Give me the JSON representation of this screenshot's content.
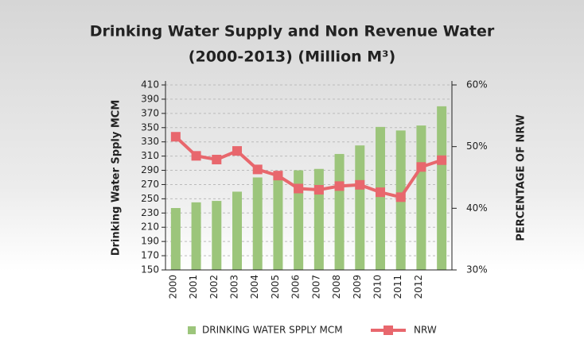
{
  "chart_data": {
    "type": "bar_line",
    "title": [
      "Drinking Water Supply and Non Revenue Water",
      "(2000-2013) (Million M³)"
    ],
    "y_label": "Drinking Water Spply MCM",
    "y2_label": "PERCENTAGE OF NRW",
    "categories": [
      "2000",
      "2001",
      "2002",
      "2003",
      "2004",
      "2005",
      "2006",
      "2007",
      "2008",
      "2009",
      "2010",
      "2011",
      "2012",
      null
    ],
    "series": [
      {
        "name": "DRINKING WATER SPPLY MCM",
        "type": "bar",
        "color": "#9cc57b",
        "values": [
          237,
          245,
          247,
          260,
          280,
          285,
          290,
          292,
          313,
          325,
          351,
          346,
          353,
          380
        ]
      },
      {
        "name": "NRW",
        "type": "line",
        "axis": "y2",
        "color": "#e8676d",
        "values": [
          51.6,
          48.5,
          47.9,
          49.3,
          46.3,
          45.3,
          43.2,
          43.0,
          43.6,
          43.8,
          42.6,
          41.8,
          46.7,
          47.8
        ]
      }
    ],
    "ylim": [
      150,
      410
    ],
    "yticks": [
      150,
      170,
      190,
      210,
      230,
      250,
      270,
      290,
      310,
      330,
      350,
      370,
      390,
      410
    ],
    "y2lim": [
      30,
      60
    ],
    "y2ticks": [
      {
        "value": 30,
        "label": "30%"
      },
      {
        "value": 40,
        "label": "40%"
      },
      {
        "value": 50,
        "label": "50%"
      },
      {
        "value": 60,
        "label": "60%"
      }
    ],
    "grid": true,
    "legend": "bottom"
  }
}
